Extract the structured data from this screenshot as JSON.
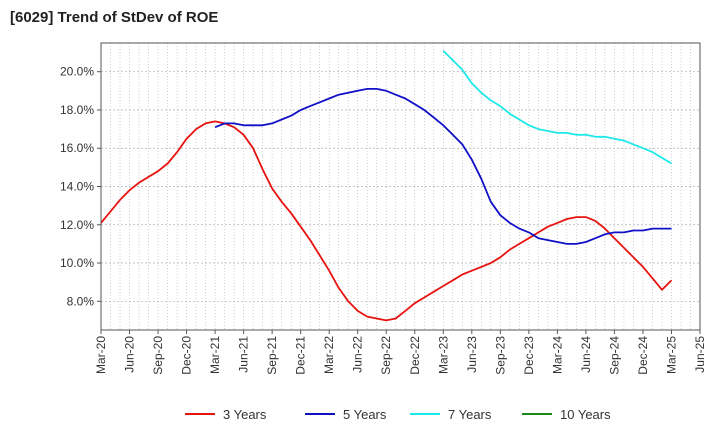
{
  "chart_data": {
    "type": "line",
    "title": "[6029]  Trend of StDev of ROE",
    "xlabel": "",
    "ylabel": "",
    "x_ticks": [
      "Mar-20",
      "Jun-20",
      "Sep-20",
      "Dec-20",
      "Mar-21",
      "Jun-21",
      "Sep-21",
      "Dec-21",
      "Mar-22",
      "Jun-22",
      "Sep-22",
      "Dec-22",
      "Mar-23",
      "Jun-23",
      "Sep-23",
      "Dec-23",
      "Mar-24",
      "Jun-24",
      "Sep-24",
      "Dec-24",
      "Mar-25",
      "Jun-25"
    ],
    "x_range": [
      "Mar-20",
      "Jun-25"
    ],
    "y_ticks": [
      8.0,
      10.0,
      12.0,
      14.0,
      16.0,
      18.0,
      20.0
    ],
    "y_tick_labels": [
      "8.0%",
      "10.0%",
      "12.0%",
      "14.0%",
      "16.0%",
      "18.0%",
      "20.0%"
    ],
    "ylim": [
      6.5,
      21.5
    ],
    "grid": true,
    "legend_position": "bottom",
    "series": [
      {
        "name": "3 Years",
        "color": "#e8120f",
        "points": [
          [
            "Mar-20",
            12.1
          ],
          [
            "Apr-20",
            12.7
          ],
          [
            "May-20",
            13.3
          ],
          [
            "Jun-20",
            13.8
          ],
          [
            "Jul-20",
            14.2
          ],
          [
            "Aug-20",
            14.5
          ],
          [
            "Sep-20",
            14.8
          ],
          [
            "Oct-20",
            15.2
          ],
          [
            "Nov-20",
            15.8
          ],
          [
            "Dec-20",
            16.5
          ],
          [
            "Jan-21",
            17.0
          ],
          [
            "Feb-21",
            17.3
          ],
          [
            "Mar-21",
            17.4
          ],
          [
            "Apr-21",
            17.3
          ],
          [
            "May-21",
            17.1
          ],
          [
            "Jun-21",
            16.7
          ],
          [
            "Jul-21",
            16.0
          ],
          [
            "Aug-21",
            14.9
          ],
          [
            "Sep-21",
            13.9
          ],
          [
            "Oct-21",
            13.2
          ],
          [
            "Nov-21",
            12.6
          ],
          [
            "Dec-21",
            11.9
          ],
          [
            "Jan-22",
            11.2
          ],
          [
            "Feb-22",
            10.4
          ],
          [
            "Mar-22",
            9.6
          ],
          [
            "Apr-22",
            8.7
          ],
          [
            "May-22",
            8.0
          ],
          [
            "Jun-22",
            7.5
          ],
          [
            "Jul-22",
            7.2
          ],
          [
            "Aug-22",
            7.1
          ],
          [
            "Sep-22",
            7.0
          ],
          [
            "Oct-22",
            7.1
          ],
          [
            "Nov-22",
            7.5
          ],
          [
            "Dec-22",
            7.9
          ],
          [
            "Jan-23",
            8.2
          ],
          [
            "Feb-23",
            8.5
          ],
          [
            "Mar-23",
            8.8
          ],
          [
            "Apr-23",
            9.1
          ],
          [
            "May-23",
            9.4
          ],
          [
            "Jun-23",
            9.6
          ],
          [
            "Jul-23",
            9.8
          ],
          [
            "Aug-23",
            10.0
          ],
          [
            "Sep-23",
            10.3
          ],
          [
            "Oct-23",
            10.7
          ],
          [
            "Nov-23",
            11.0
          ],
          [
            "Dec-23",
            11.3
          ],
          [
            "Jan-24",
            11.6
          ],
          [
            "Feb-24",
            11.9
          ],
          [
            "Mar-24",
            12.1
          ],
          [
            "Apr-24",
            12.3
          ],
          [
            "May-24",
            12.4
          ],
          [
            "Jun-24",
            12.4
          ],
          [
            "Jul-24",
            12.2
          ],
          [
            "Aug-24",
            11.8
          ],
          [
            "Sep-24",
            11.3
          ],
          [
            "Oct-24",
            10.8
          ],
          [
            "Nov-24",
            10.3
          ],
          [
            "Dec-24",
            9.8
          ],
          [
            "Jan-25",
            9.2
          ],
          [
            "Feb-25",
            8.6
          ],
          [
            "Mar-25",
            9.1
          ]
        ]
      },
      {
        "name": "5 Years",
        "color": "#0f10c8",
        "points": [
          [
            "Mar-21",
            17.1
          ],
          [
            "Apr-21",
            17.3
          ],
          [
            "May-21",
            17.3
          ],
          [
            "Jun-21",
            17.2
          ],
          [
            "Jul-21",
            17.2
          ],
          [
            "Aug-21",
            17.2
          ],
          [
            "Sep-21",
            17.3
          ],
          [
            "Oct-21",
            17.5
          ],
          [
            "Nov-21",
            17.7
          ],
          [
            "Dec-21",
            18.0
          ],
          [
            "Jan-22",
            18.2
          ],
          [
            "Feb-22",
            18.4
          ],
          [
            "Mar-22",
            18.6
          ],
          [
            "Apr-22",
            18.8
          ],
          [
            "May-22",
            18.9
          ],
          [
            "Jun-22",
            19.0
          ],
          [
            "Jul-22",
            19.1
          ],
          [
            "Aug-22",
            19.1
          ],
          [
            "Sep-22",
            19.0
          ],
          [
            "Oct-22",
            18.8
          ],
          [
            "Nov-22",
            18.6
          ],
          [
            "Dec-22",
            18.3
          ],
          [
            "Jan-23",
            18.0
          ],
          [
            "Feb-23",
            17.6
          ],
          [
            "Mar-23",
            17.2
          ],
          [
            "Apr-23",
            16.7
          ],
          [
            "May-23",
            16.2
          ],
          [
            "Jun-23",
            15.4
          ],
          [
            "Jul-23",
            14.4
          ],
          [
            "Aug-23",
            13.2
          ],
          [
            "Sep-23",
            12.5
          ],
          [
            "Oct-23",
            12.1
          ],
          [
            "Nov-23",
            11.8
          ],
          [
            "Dec-23",
            11.6
          ],
          [
            "Jan-24",
            11.3
          ],
          [
            "Feb-24",
            11.2
          ],
          [
            "Mar-24",
            11.1
          ],
          [
            "Apr-24",
            11.0
          ],
          [
            "May-24",
            11.0
          ],
          [
            "Jun-24",
            11.1
          ],
          [
            "Jul-24",
            11.3
          ],
          [
            "Aug-24",
            11.5
          ],
          [
            "Sep-24",
            11.6
          ],
          [
            "Oct-24",
            11.6
          ],
          [
            "Nov-24",
            11.7
          ],
          [
            "Dec-24",
            11.7
          ],
          [
            "Jan-25",
            11.8
          ],
          [
            "Feb-25",
            11.8
          ],
          [
            "Mar-25",
            11.8
          ]
        ]
      },
      {
        "name": "7 Years",
        "color": "#1ee8ea",
        "points": [
          [
            "Mar-23",
            21.1
          ],
          [
            "Apr-23",
            20.6
          ],
          [
            "May-23",
            20.1
          ],
          [
            "Jun-23",
            19.4
          ],
          [
            "Jul-23",
            18.9
          ],
          [
            "Aug-23",
            18.5
          ],
          [
            "Sep-23",
            18.2
          ],
          [
            "Oct-23",
            17.8
          ],
          [
            "Nov-23",
            17.5
          ],
          [
            "Dec-23",
            17.2
          ],
          [
            "Jan-24",
            17.0
          ],
          [
            "Feb-24",
            16.9
          ],
          [
            "Mar-24",
            16.8
          ],
          [
            "Apr-24",
            16.8
          ],
          [
            "May-24",
            16.7
          ],
          [
            "Jun-24",
            16.7
          ],
          [
            "Jul-24",
            16.6
          ],
          [
            "Aug-24",
            16.6
          ],
          [
            "Sep-24",
            16.5
          ],
          [
            "Oct-24",
            16.4
          ],
          [
            "Nov-24",
            16.2
          ],
          [
            "Dec-24",
            16.0
          ],
          [
            "Jan-25",
            15.8
          ],
          [
            "Feb-25",
            15.5
          ],
          [
            "Mar-25",
            15.2
          ]
        ]
      },
      {
        "name": "10 Years",
        "color": "#1a8a1a",
        "points": []
      }
    ]
  }
}
